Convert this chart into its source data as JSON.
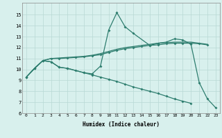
{
  "xlabel": "Humidex (Indice chaleur)",
  "x": [
    0,
    1,
    2,
    3,
    4,
    5,
    6,
    7,
    8,
    9,
    10,
    11,
    12,
    13,
    14,
    15,
    16,
    17,
    18,
    19,
    20,
    21,
    22,
    23
  ],
  "line1_x": [
    0,
    1,
    2,
    3,
    4,
    5,
    7,
    8,
    9,
    10,
    11,
    12,
    13,
    15,
    16,
    17,
    18,
    19,
    20,
    21,
    22,
    23
  ],
  "line1_y": [
    9.3,
    10.1,
    10.8,
    10.7,
    10.2,
    10.1,
    9.7,
    9.6,
    10.3,
    13.6,
    15.2,
    13.9,
    13.3,
    12.2,
    12.4,
    12.5,
    12.8,
    12.7,
    12.3,
    8.8,
    7.3,
    6.5
  ],
  "line2_x": [
    0,
    1,
    2,
    3,
    4,
    5,
    6,
    7,
    8,
    9,
    10,
    11,
    12,
    13,
    14,
    15,
    16,
    17,
    18,
    19,
    20,
    21,
    22
  ],
  "line2_y": [
    9.3,
    10.1,
    10.8,
    11.0,
    11.0,
    11.05,
    11.1,
    11.15,
    11.25,
    11.35,
    11.55,
    11.75,
    11.9,
    12.0,
    12.1,
    12.2,
    12.25,
    12.35,
    12.4,
    12.4,
    12.4,
    12.35,
    12.25
  ],
  "line3_x": [
    0,
    1,
    2,
    3,
    4,
    5,
    6,
    7,
    8,
    9,
    10,
    11,
    12,
    13,
    14,
    15,
    16,
    17,
    18,
    19,
    20,
    21,
    22
  ],
  "line3_y": [
    9.3,
    10.1,
    10.8,
    11.0,
    11.05,
    11.1,
    11.15,
    11.2,
    11.3,
    11.45,
    11.65,
    11.85,
    12.0,
    12.1,
    12.2,
    12.3,
    12.4,
    12.45,
    12.5,
    12.5,
    12.5,
    12.4,
    12.3
  ],
  "line4_x": [
    0,
    1,
    2,
    3,
    4,
    5,
    6,
    7,
    8,
    9,
    10,
    11,
    12,
    13,
    14,
    15,
    16,
    17,
    18,
    19,
    20
  ],
  "line4_y": [
    9.3,
    10.1,
    10.8,
    10.7,
    10.2,
    10.1,
    9.9,
    9.7,
    9.5,
    9.3,
    9.1,
    8.9,
    8.65,
    8.4,
    8.2,
    8.0,
    7.8,
    7.55,
    7.3,
    7.1,
    6.9
  ],
  "color": "#2d7d6e",
  "bg_color": "#d8f0ed",
  "grid_color": "#b8d8d4",
  "ylim": [
    6,
    16
  ],
  "xlim": [
    -0.5,
    23.5
  ],
  "yticks": [
    6,
    7,
    8,
    9,
    10,
    11,
    12,
    13,
    14,
    15
  ],
  "xticks": [
    0,
    1,
    2,
    3,
    4,
    5,
    6,
    7,
    8,
    9,
    10,
    11,
    12,
    13,
    14,
    15,
    16,
    17,
    18,
    19,
    20,
    21,
    22,
    23
  ]
}
